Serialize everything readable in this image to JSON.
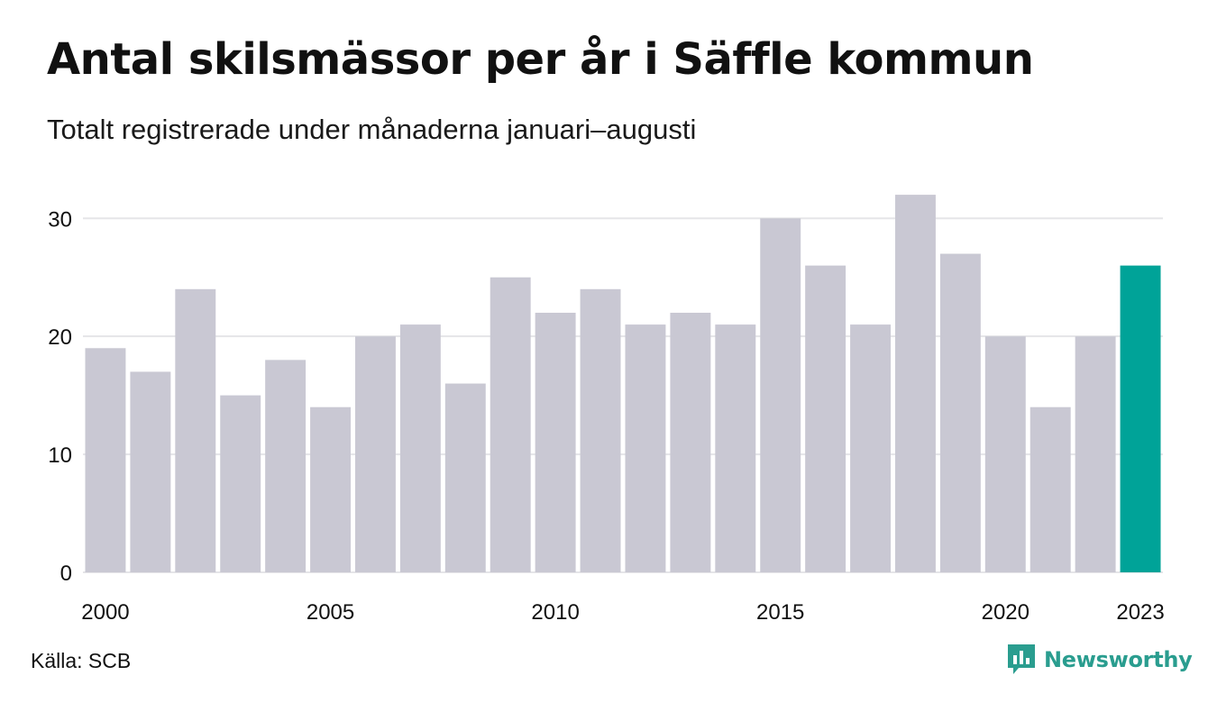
{
  "title": "Antal skilsmässor per år i Säffle kommun",
  "subtitle": "Totalt registrerade under månaderna januari–augusti",
  "source": "Källa: SCB",
  "brand": {
    "name": "Newsworthy",
    "icon": "newsworthy-logo-icon",
    "color": "#2a9d8f"
  },
  "chart_data": {
    "type": "bar",
    "categories": [
      2000,
      2001,
      2002,
      2003,
      2004,
      2005,
      2006,
      2007,
      2008,
      2009,
      2010,
      2011,
      2012,
      2013,
      2014,
      2015,
      2016,
      2017,
      2018,
      2019,
      2020,
      2021,
      2022,
      2023
    ],
    "values": [
      19,
      17,
      24,
      15,
      18,
      14,
      20,
      21,
      16,
      25,
      22,
      24,
      21,
      22,
      21,
      30,
      26,
      21,
      32,
      27,
      20,
      14,
      20,
      26
    ],
    "x_tick_labels": [
      "2000",
      "2005",
      "2010",
      "2015",
      "2020",
      "2023"
    ],
    "y_ticks": [
      0,
      10,
      20,
      30
    ],
    "ylim": [
      0,
      33
    ],
    "grid": true,
    "bar_color": "#c9c8d3",
    "highlight_color": "#00a398",
    "highlight_category": 2023
  }
}
